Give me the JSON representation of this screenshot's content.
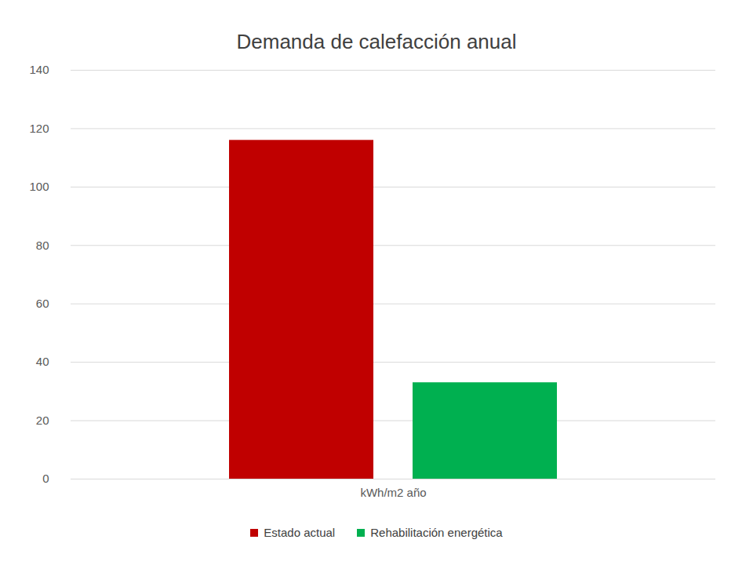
{
  "chart_data": {
    "type": "bar",
    "title": "Demanda de calefacción anual",
    "categories": [
      "kWh/m2 año"
    ],
    "series": [
      {
        "name": "Estado actual",
        "color": "#c00000",
        "values": [
          116
        ]
      },
      {
        "name": "Rehabilitación energética",
        "color": "#00b050",
        "values": [
          33
        ]
      }
    ],
    "ylim": [
      0,
      140
    ],
    "yticks": [
      0,
      20,
      40,
      60,
      80,
      100,
      120,
      140
    ],
    "grid": true,
    "legend": "bottom"
  }
}
